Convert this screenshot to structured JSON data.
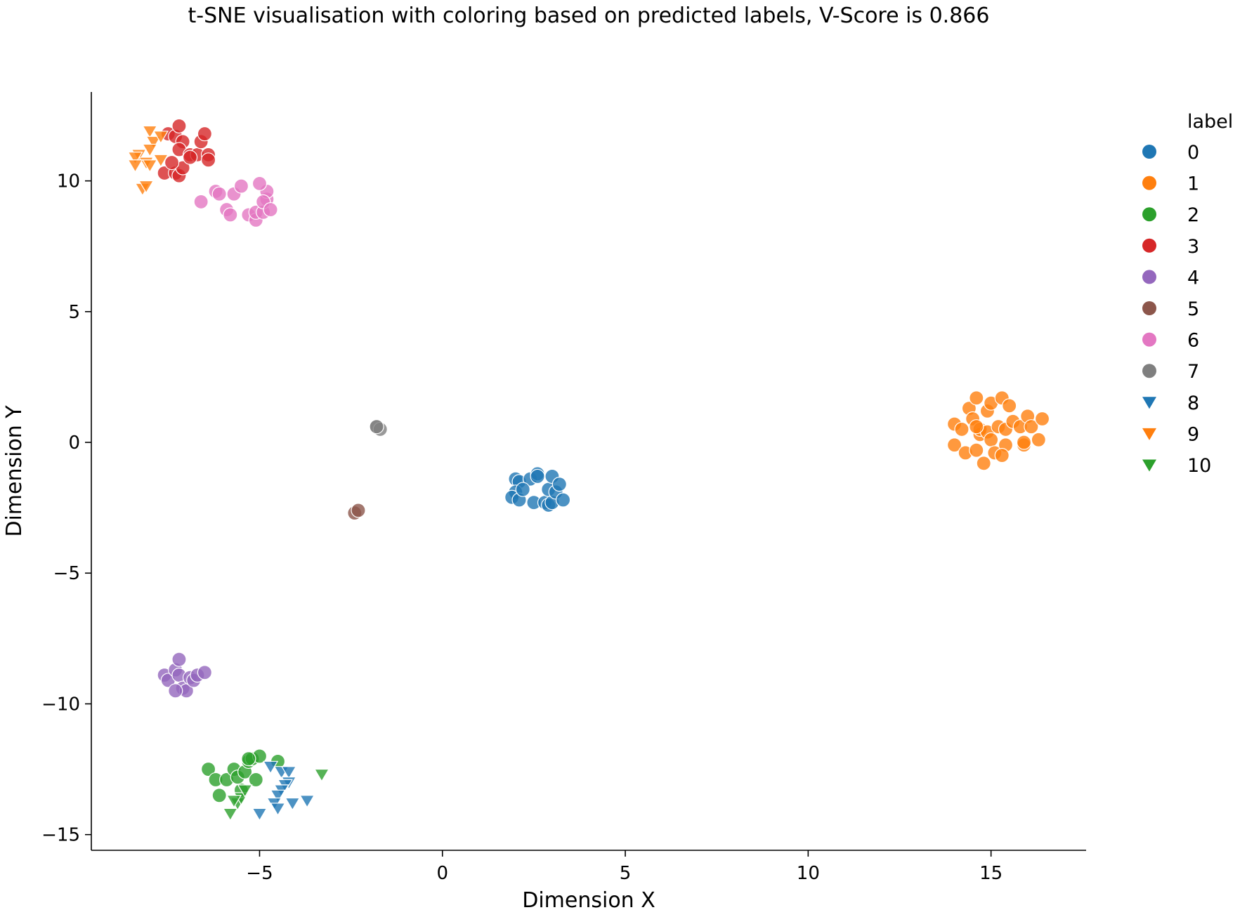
{
  "chart_data": {
    "type": "scatter",
    "title": "t-SNE visualisation with coloring based on predicted labels, V-Score is 0.866",
    "xlabel": "Dimension X",
    "ylabel": "Dimension Y",
    "xlim": [
      -9.6,
      17.6
    ],
    "ylim": [
      -15.6,
      13.4
    ],
    "xticks": [
      -5,
      0,
      5,
      10,
      15
    ],
    "yticks": [
      -15,
      -10,
      -5,
      0,
      5,
      10
    ],
    "xtick_labels": [
      "−5",
      "0",
      "5",
      "10",
      "15"
    ],
    "ytick_labels": [
      "−15",
      "−10",
      "−5",
      "0",
      "5",
      "10"
    ],
    "grid": false,
    "legend": {
      "title": "label",
      "placement": "outside-right-top"
    },
    "series": [
      {
        "name": "0",
        "marker": "circle",
        "color": "#1f77b4",
        "points": [
          [
            2.0,
            -1.4
          ],
          [
            2.1,
            -1.5
          ],
          [
            2.0,
            -1.9
          ],
          [
            1.9,
            -2.1
          ],
          [
            2.1,
            -2.2
          ],
          [
            2.4,
            -1.4
          ],
          [
            2.6,
            -1.2
          ],
          [
            2.6,
            -1.3
          ],
          [
            2.5,
            -2.3
          ],
          [
            2.8,
            -2.3
          ],
          [
            2.9,
            -2.4
          ],
          [
            3.0,
            -2.3
          ],
          [
            2.9,
            -1.8
          ],
          [
            3.0,
            -1.3
          ],
          [
            3.1,
            -1.9
          ],
          [
            3.2,
            -1.6
          ],
          [
            3.3,
            -2.2
          ],
          [
            2.2,
            -1.8
          ]
        ]
      },
      {
        "name": "1",
        "marker": "circle",
        "color": "#ff7f0e",
        "points": [
          [
            14.0,
            0.7
          ],
          [
            14.0,
            -0.1
          ],
          [
            14.2,
            0.5
          ],
          [
            14.3,
            -0.4
          ],
          [
            14.4,
            1.3
          ],
          [
            14.5,
            0.9
          ],
          [
            14.6,
            1.7
          ],
          [
            14.6,
            -0.3
          ],
          [
            14.7,
            0.3
          ],
          [
            14.7,
            0.5
          ],
          [
            14.8,
            -0.8
          ],
          [
            14.9,
            1.2
          ],
          [
            14.9,
            0.4
          ],
          [
            15.0,
            0.1
          ],
          [
            15.0,
            1.5
          ],
          [
            15.1,
            -0.4
          ],
          [
            15.2,
            0.6
          ],
          [
            15.3,
            1.7
          ],
          [
            15.4,
            0.5
          ],
          [
            15.4,
            -0.1
          ],
          [
            15.5,
            1.4
          ],
          [
            15.6,
            0.8
          ],
          [
            15.8,
            0.6
          ],
          [
            15.9,
            -0.1
          ],
          [
            15.9,
            0.0
          ],
          [
            16.0,
            1.0
          ],
          [
            16.1,
            0.6
          ],
          [
            16.3,
            0.1
          ],
          [
            16.4,
            0.9
          ],
          [
            15.3,
            -0.5
          ],
          [
            14.6,
            0.6
          ]
        ]
      },
      {
        "name": "2",
        "marker": "circle",
        "color": "#2ca02c",
        "points": [
          [
            -6.4,
            -12.5
          ],
          [
            -6.2,
            -12.9
          ],
          [
            -6.1,
            -13.5
          ],
          [
            -5.9,
            -12.9
          ],
          [
            -5.7,
            -12.5
          ],
          [
            -5.5,
            -13.3
          ],
          [
            -5.6,
            -12.8
          ],
          [
            -5.4,
            -12.6
          ],
          [
            -5.3,
            -12.2
          ],
          [
            -5.2,
            -12.1
          ],
          [
            -5.1,
            -12.9
          ],
          [
            -5.0,
            -12.0
          ],
          [
            -4.5,
            -12.2
          ],
          [
            -5.3,
            -12.1
          ]
        ]
      },
      {
        "name": "3",
        "marker": "circle",
        "color": "#d62728",
        "points": [
          [
            -7.5,
            11.8
          ],
          [
            -7.3,
            11.7
          ],
          [
            -7.2,
            12.1
          ],
          [
            -7.1,
            11.5
          ],
          [
            -7.2,
            11.2
          ],
          [
            -6.9,
            11.0
          ],
          [
            -6.7,
            11.0
          ],
          [
            -6.6,
            11.5
          ],
          [
            -6.5,
            11.8
          ],
          [
            -6.4,
            11.0
          ],
          [
            -6.4,
            10.8
          ],
          [
            -7.6,
            10.3
          ],
          [
            -7.3,
            10.3
          ],
          [
            -7.2,
            10.2
          ],
          [
            -7.1,
            10.5
          ],
          [
            -6.9,
            10.9
          ],
          [
            -7.4,
            10.7
          ]
        ]
      },
      {
        "name": "4",
        "marker": "circle",
        "color": "#9467bd",
        "points": [
          [
            -7.6,
            -8.9
          ],
          [
            -7.5,
            -9.1
          ],
          [
            -7.3,
            -8.7
          ],
          [
            -7.2,
            -8.3
          ],
          [
            -7.2,
            -8.9
          ],
          [
            -7.1,
            -9.4
          ],
          [
            -7.0,
            -9.5
          ],
          [
            -6.9,
            -9.0
          ],
          [
            -6.8,
            -9.1
          ],
          [
            -6.7,
            -8.9
          ],
          [
            -6.5,
            -8.8
          ],
          [
            -7.3,
            -9.5
          ]
        ]
      },
      {
        "name": "5",
        "marker": "circle",
        "color": "#8c564b",
        "points": [
          [
            -2.4,
            -2.7
          ],
          [
            -2.3,
            -2.6
          ]
        ]
      },
      {
        "name": "6",
        "marker": "circle",
        "color": "#e377c2",
        "points": [
          [
            -6.6,
            9.2
          ],
          [
            -6.2,
            9.6
          ],
          [
            -6.1,
            9.5
          ],
          [
            -5.9,
            8.9
          ],
          [
            -5.8,
            8.7
          ],
          [
            -5.7,
            9.5
          ],
          [
            -5.5,
            9.8
          ],
          [
            -5.3,
            8.7
          ],
          [
            -5.1,
            8.5
          ],
          [
            -5.1,
            8.8
          ],
          [
            -4.9,
            8.8
          ],
          [
            -4.8,
            9.3
          ],
          [
            -4.8,
            9.6
          ],
          [
            -4.9,
            9.2
          ],
          [
            -5.0,
            9.9
          ],
          [
            -4.7,
            8.9
          ]
        ]
      },
      {
        "name": "7",
        "marker": "circle",
        "color": "#7f7f7f",
        "points": [
          [
            -1.8,
            0.6
          ],
          [
            -1.7,
            0.5
          ],
          [
            -1.8,
            0.6
          ]
        ]
      },
      {
        "name": "8",
        "marker": "triangle-down",
        "color": "#1f77b4",
        "points": [
          [
            -4.7,
            -12.4
          ],
          [
            -4.4,
            -12.6
          ],
          [
            -4.2,
            -12.6
          ],
          [
            -4.2,
            -13.0
          ],
          [
            -4.3,
            -13.1
          ],
          [
            -4.4,
            -13.3
          ],
          [
            -4.5,
            -13.5
          ],
          [
            -4.6,
            -13.8
          ],
          [
            -4.5,
            -14.0
          ],
          [
            -4.1,
            -13.8
          ],
          [
            -3.7,
            -13.7
          ],
          [
            -5.0,
            -14.2
          ]
        ]
      },
      {
        "name": "9",
        "marker": "triangle-down",
        "color": "#ff7f0e",
        "points": [
          [
            -8.0,
            11.9
          ],
          [
            -7.9,
            11.5
          ],
          [
            -8.0,
            11.2
          ],
          [
            -8.3,
            11.0
          ],
          [
            -8.4,
            10.9
          ],
          [
            -8.1,
            10.7
          ],
          [
            -8.4,
            10.6
          ],
          [
            -7.7,
            11.7
          ],
          [
            -7.7,
            10.8
          ],
          [
            -8.2,
            9.7
          ],
          [
            -8.1,
            9.8
          ],
          [
            -8.0,
            10.6
          ]
        ]
      },
      {
        "name": "10",
        "marker": "triangle-down",
        "color": "#2ca02c",
        "points": [
          [
            -5.8,
            -14.2
          ],
          [
            -5.6,
            -13.8
          ],
          [
            -5.5,
            -13.6
          ],
          [
            -5.4,
            -13.3
          ],
          [
            -5.7,
            -13.7
          ],
          [
            -3.3,
            -12.7
          ]
        ]
      }
    ]
  }
}
